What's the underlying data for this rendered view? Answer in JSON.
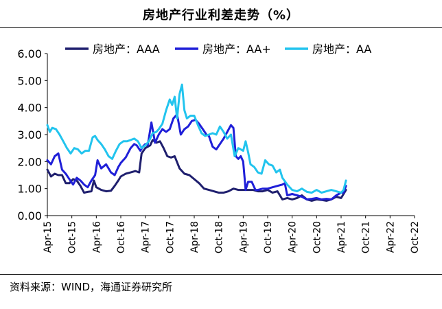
{
  "chart_data": {
    "type": "line",
    "title": "房地产行业利差走势（%）",
    "ylim": [
      0,
      6
    ],
    "yticks": [
      "0.00",
      "1.00",
      "2.00",
      "3.00",
      "4.00",
      "5.00",
      "6.00"
    ],
    "xticks": [
      "Apr-15",
      "Oct-15",
      "Apr-16",
      "Oct-16",
      "Apr-17",
      "Oct-17",
      "Apr-18",
      "Oct-18",
      "Apr-19",
      "Oct-19",
      "Apr-20",
      "Oct-20",
      "Apr-21",
      "Oct-21",
      "Apr-22",
      "Oct-22"
    ],
    "legend_position": "top",
    "series": [
      {
        "name": "房地产：AAA",
        "color": "#1f1f6e",
        "points": [
          [
            0,
            1.7
          ],
          [
            0.15,
            1.45
          ],
          [
            0.3,
            1.55
          ],
          [
            0.45,
            1.5
          ],
          [
            0.6,
            1.5
          ],
          [
            0.75,
            1.2
          ],
          [
            0.9,
            1.2
          ],
          [
            1.05,
            1.35
          ],
          [
            1.2,
            1.3
          ],
          [
            1.35,
            1.1
          ],
          [
            1.5,
            0.85
          ],
          [
            1.65,
            0.88
          ],
          [
            1.8,
            0.9
          ],
          [
            1.9,
            1.3
          ],
          [
            2.0,
            1.05
          ],
          [
            2.2,
            0.95
          ],
          [
            2.4,
            0.9
          ],
          [
            2.6,
            0.92
          ],
          [
            2.75,
            1.1
          ],
          [
            2.9,
            1.3
          ],
          [
            3.0,
            1.45
          ],
          [
            3.2,
            1.55
          ],
          [
            3.4,
            1.6
          ],
          [
            3.6,
            1.65
          ],
          [
            3.75,
            1.6
          ],
          [
            3.85,
            2.3
          ],
          [
            4.0,
            2.5
          ],
          [
            4.2,
            2.6
          ],
          [
            4.3,
            2.8
          ],
          [
            4.45,
            2.7
          ],
          [
            4.6,
            2.75
          ],
          [
            4.75,
            2.5
          ],
          [
            4.9,
            2.2
          ],
          [
            5.05,
            2.15
          ],
          [
            5.2,
            2.2
          ],
          [
            5.4,
            1.75
          ],
          [
            5.6,
            1.55
          ],
          [
            5.8,
            1.5
          ],
          [
            6.0,
            1.35
          ],
          [
            6.2,
            1.2
          ],
          [
            6.4,
            1.0
          ],
          [
            6.6,
            0.95
          ],
          [
            6.8,
            0.9
          ],
          [
            7.0,
            0.85
          ],
          [
            7.2,
            0.85
          ],
          [
            7.4,
            0.9
          ],
          [
            7.6,
            1.0
          ],
          [
            7.8,
            0.95
          ],
          [
            8.0,
            0.95
          ],
          [
            8.2,
            0.95
          ],
          [
            8.4,
            0.95
          ],
          [
            8.6,
            0.9
          ],
          [
            8.8,
            0.9
          ],
          [
            9.0,
            0.95
          ],
          [
            9.2,
            0.85
          ],
          [
            9.4,
            0.9
          ],
          [
            9.6,
            0.6
          ],
          [
            9.8,
            0.65
          ],
          [
            10.0,
            0.6
          ],
          [
            10.2,
            0.65
          ],
          [
            10.4,
            0.75
          ],
          [
            10.6,
            0.6
          ],
          [
            10.8,
            0.55
          ],
          [
            11.0,
            0.6
          ],
          [
            11.2,
            0.58
          ],
          [
            11.4,
            0.55
          ],
          [
            11.6,
            0.6
          ],
          [
            11.8,
            0.7
          ],
          [
            12.0,
            0.65
          ],
          [
            12.1,
            0.8
          ],
          [
            12.2,
            0.95
          ]
        ]
      },
      {
        "name": "房地产：AA+",
        "color": "#1f1fd8",
        "points": [
          [
            0,
            2.05
          ],
          [
            0.15,
            1.9
          ],
          [
            0.3,
            2.2
          ],
          [
            0.45,
            2.3
          ],
          [
            0.6,
            1.7
          ],
          [
            0.75,
            1.55
          ],
          [
            0.9,
            1.35
          ],
          [
            1.05,
            1.15
          ],
          [
            1.2,
            1.4
          ],
          [
            1.35,
            1.3
          ],
          [
            1.5,
            1.15
          ],
          [
            1.65,
            1.05
          ],
          [
            1.8,
            1.3
          ],
          [
            1.95,
            1.5
          ],
          [
            2.05,
            2.05
          ],
          [
            2.2,
            1.75
          ],
          [
            2.4,
            1.9
          ],
          [
            2.6,
            1.6
          ],
          [
            2.75,
            1.5
          ],
          [
            2.9,
            1.8
          ],
          [
            3.0,
            1.95
          ],
          [
            3.2,
            2.15
          ],
          [
            3.4,
            2.5
          ],
          [
            3.55,
            2.65
          ],
          [
            3.65,
            2.6
          ],
          [
            3.8,
            2.4
          ],
          [
            3.9,
            2.55
          ],
          [
            4.0,
            2.65
          ],
          [
            4.1,
            2.6
          ],
          [
            4.25,
            3.45
          ],
          [
            4.4,
            2.7
          ],
          [
            4.55,
            3.0
          ],
          [
            4.7,
            3.2
          ],
          [
            4.85,
            3.1
          ],
          [
            5.0,
            3.2
          ],
          [
            5.15,
            3.6
          ],
          [
            5.3,
            3.75
          ],
          [
            5.45,
            3.0
          ],
          [
            5.6,
            3.2
          ],
          [
            5.75,
            3.3
          ],
          [
            5.9,
            3.5
          ],
          [
            6.05,
            3.55
          ],
          [
            6.2,
            3.4
          ],
          [
            6.35,
            3.2
          ],
          [
            6.5,
            3.0
          ],
          [
            6.6,
            2.95
          ],
          [
            6.75,
            2.55
          ],
          [
            6.9,
            2.45
          ],
          [
            7.05,
            2.65
          ],
          [
            7.2,
            2.85
          ],
          [
            7.35,
            3.1
          ],
          [
            7.5,
            3.35
          ],
          [
            7.6,
            3.25
          ],
          [
            7.7,
            2.2
          ],
          [
            7.8,
            2.1
          ],
          [
            7.9,
            2.2
          ],
          [
            8.0,
            2.0
          ],
          [
            8.1,
            0.95
          ],
          [
            8.2,
            1.25
          ],
          [
            8.35,
            1.25
          ],
          [
            8.5,
            0.95
          ],
          [
            8.6,
            0.95
          ],
          [
            8.8,
            1.0
          ],
          [
            9.0,
            1.0
          ],
          [
            9.2,
            1.05
          ],
          [
            9.4,
            1.1
          ],
          [
            9.6,
            1.15
          ],
          [
            9.7,
            1.2
          ],
          [
            9.8,
            0.75
          ],
          [
            10.0,
            0.8
          ],
          [
            10.2,
            0.75
          ],
          [
            10.4,
            0.7
          ],
          [
            10.6,
            0.6
          ],
          [
            10.8,
            0.62
          ],
          [
            11.0,
            0.65
          ],
          [
            11.2,
            0.6
          ],
          [
            11.4,
            0.62
          ],
          [
            11.6,
            0.6
          ],
          [
            11.8,
            0.75
          ],
          [
            12.0,
            0.85
          ],
          [
            12.1,
            0.85
          ],
          [
            12.2,
            1.1
          ]
        ]
      },
      {
        "name": "房地产：AA",
        "color": "#22c4ee",
        "points": [
          [
            0,
            3.35
          ],
          [
            0.1,
            3.1
          ],
          [
            0.2,
            3.25
          ],
          [
            0.35,
            3.2
          ],
          [
            0.5,
            3.0
          ],
          [
            0.65,
            2.75
          ],
          [
            0.8,
            2.5
          ],
          [
            0.95,
            2.3
          ],
          [
            1.1,
            2.5
          ],
          [
            1.25,
            2.45
          ],
          [
            1.4,
            2.3
          ],
          [
            1.55,
            2.4
          ],
          [
            1.7,
            2.4
          ],
          [
            1.85,
            2.9
          ],
          [
            1.95,
            2.95
          ],
          [
            2.05,
            2.8
          ],
          [
            2.2,
            2.65
          ],
          [
            2.35,
            2.45
          ],
          [
            2.5,
            2.2
          ],
          [
            2.65,
            2.1
          ],
          [
            2.8,
            2.4
          ],
          [
            2.95,
            2.65
          ],
          [
            3.1,
            2.75
          ],
          [
            3.25,
            2.75
          ],
          [
            3.4,
            2.8
          ],
          [
            3.55,
            2.85
          ],
          [
            3.7,
            2.75
          ],
          [
            3.85,
            2.5
          ],
          [
            4.0,
            2.6
          ],
          [
            4.15,
            2.75
          ],
          [
            4.3,
            3.05
          ],
          [
            4.45,
            3.1
          ],
          [
            4.55,
            3.2
          ],
          [
            4.7,
            3.4
          ],
          [
            4.85,
            3.9
          ],
          [
            5.0,
            4.3
          ],
          [
            5.1,
            4.1
          ],
          [
            5.2,
            4.4
          ],
          [
            5.3,
            3.6
          ],
          [
            5.4,
            4.5
          ],
          [
            5.5,
            4.85
          ],
          [
            5.6,
            3.9
          ],
          [
            5.7,
            3.6
          ],
          [
            5.85,
            3.7
          ],
          [
            6.0,
            3.7
          ],
          [
            6.15,
            3.35
          ],
          [
            6.3,
            3.05
          ],
          [
            6.45,
            2.95
          ],
          [
            6.6,
            3.0
          ],
          [
            6.75,
            3.05
          ],
          [
            6.9,
            3.0
          ],
          [
            7.05,
            3.3
          ],
          [
            7.2,
            3.1
          ],
          [
            7.35,
            2.85
          ],
          [
            7.5,
            3.0
          ],
          [
            7.65,
            2.2
          ],
          [
            7.8,
            2.5
          ],
          [
            7.9,
            2.45
          ],
          [
            8.0,
            2.4
          ],
          [
            8.1,
            2.75
          ],
          [
            8.2,
            2.35
          ],
          [
            8.3,
            1.9
          ],
          [
            8.45,
            1.8
          ],
          [
            8.6,
            1.6
          ],
          [
            8.75,
            1.55
          ],
          [
            8.9,
            2.05
          ],
          [
            9.05,
            1.9
          ],
          [
            9.2,
            1.85
          ],
          [
            9.35,
            1.6
          ],
          [
            9.5,
            1.7
          ],
          [
            9.6,
            1.4
          ],
          [
            9.8,
            1.15
          ],
          [
            10.0,
            0.95
          ],
          [
            10.2,
            0.9
          ],
          [
            10.4,
            1.0
          ],
          [
            10.6,
            0.88
          ],
          [
            10.8,
            0.85
          ],
          [
            11.0,
            0.95
          ],
          [
            11.2,
            0.85
          ],
          [
            11.4,
            0.9
          ],
          [
            11.6,
            0.95
          ],
          [
            11.8,
            0.9
          ],
          [
            12.0,
            0.85
          ],
          [
            12.1,
            0.95
          ],
          [
            12.2,
            1.3
          ]
        ]
      }
    ]
  },
  "footer": {
    "source": "资料来源：WIND，海通证券研究所"
  }
}
